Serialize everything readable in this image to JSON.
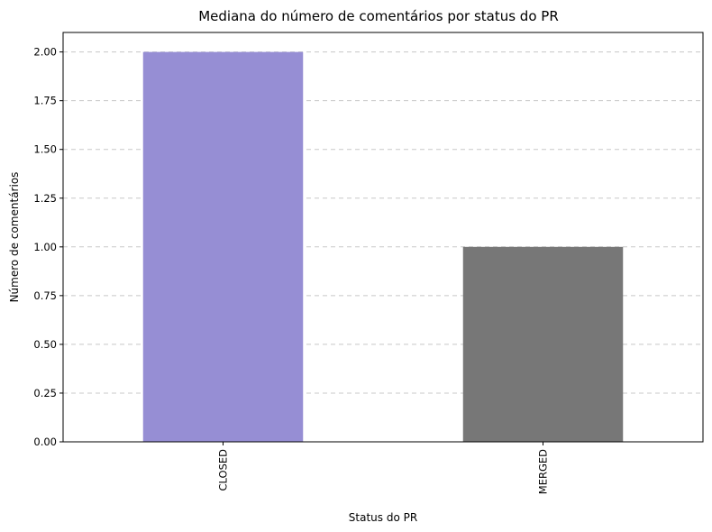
{
  "chart_data": {
    "type": "bar",
    "title": "Mediana do número de comentários por status do PR",
    "xlabel": "Status do PR",
    "ylabel": "Número de comentários",
    "categories": [
      "CLOSED",
      "MERGED"
    ],
    "values": [
      2.0,
      1.0
    ],
    "bar_colors": [
      "#968ed4",
      "#777777"
    ],
    "ylim": [
      0,
      2.1
    ],
    "yticks": [
      "0.00",
      "0.25",
      "0.50",
      "0.75",
      "1.00",
      "1.25",
      "1.50",
      "1.75",
      "2.00"
    ],
    "grid": {
      "axis": "y",
      "style": "dashed",
      "color": "#c8c8c8"
    },
    "legend": "none"
  }
}
